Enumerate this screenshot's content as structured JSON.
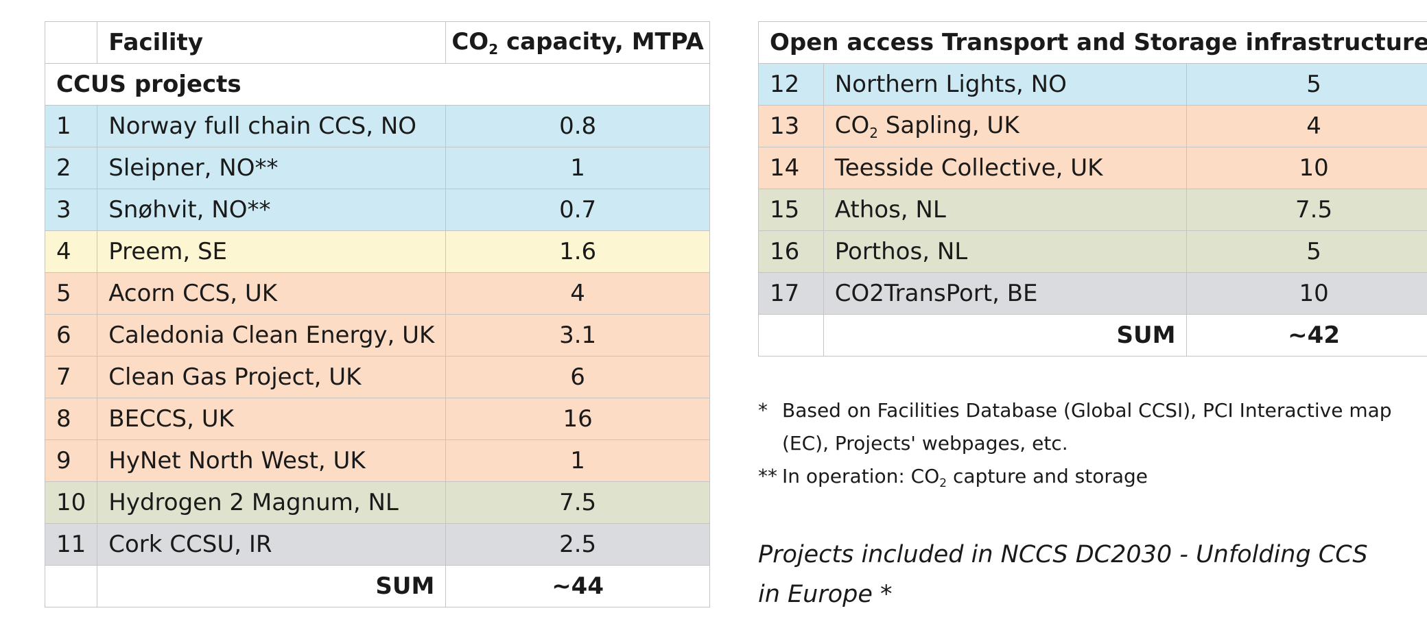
{
  "left_table": {
    "header": {
      "num": "",
      "facility": "Facility",
      "capacity_prefix": "CO",
      "capacity_sub": "2",
      "capacity_suffix": " capacity, MTPA"
    },
    "section_title": "CCUS projects",
    "rows": [
      {
        "num": "1",
        "facility": "Norway full chain CCS, NO",
        "capacity": "0.8",
        "category": "no"
      },
      {
        "num": "2",
        "facility": "Sleipner, NO**",
        "capacity": "1",
        "category": "no"
      },
      {
        "num": "3",
        "facility": "Snøhvit, NO**",
        "capacity": "0.7",
        "category": "no"
      },
      {
        "num": "4",
        "facility": "Preem, SE",
        "capacity": "1.6",
        "category": "se"
      },
      {
        "num": "5",
        "facility": "Acorn CCS, UK",
        "capacity": "4",
        "category": "uk"
      },
      {
        "num": "6",
        "facility": "Caledonia Clean Energy, UK",
        "capacity": "3.1",
        "category": "uk"
      },
      {
        "num": "7",
        "facility": "Clean Gas Project, UK",
        "capacity": "6",
        "category": "uk"
      },
      {
        "num": "8",
        "facility": "BECCS, UK",
        "capacity": "16",
        "category": "uk"
      },
      {
        "num": "9",
        "facility": "HyNet North West, UK",
        "capacity": "1",
        "category": "uk"
      },
      {
        "num": "10",
        "facility": "Hydrogen 2 Magnum, NL",
        "capacity": "7.5",
        "category": "nl"
      },
      {
        "num": "11",
        "facility": "Cork CCSU, IR",
        "capacity": "2.5",
        "category": "other"
      }
    ],
    "sum_label": "SUM",
    "sum_value": "~44"
  },
  "right_table": {
    "title": "Open access Transport and Storage infrastructure",
    "rows": [
      {
        "num": "12",
        "facility": "Northern Lights, NO",
        "capacity": "5",
        "category": "no"
      },
      {
        "num": "13",
        "facility_prefix": "CO",
        "facility_sub": "2",
        "facility_suffix": " Sapling, UK",
        "capacity": "4",
        "category": "uk"
      },
      {
        "num": "14",
        "facility": "Teesside Collective, UK",
        "capacity": "10",
        "category": "uk"
      },
      {
        "num": "15",
        "facility": "Athos, NL",
        "capacity": "7.5",
        "category": "nl"
      },
      {
        "num": "16",
        "facility": "Porthos, NL",
        "capacity": "5",
        "category": "nl"
      },
      {
        "num": "17",
        "facility": "CO2TransPort, BE",
        "capacity": "10",
        "category": "other"
      }
    ],
    "sum_label": "SUM",
    "sum_value": "~42"
  },
  "notes": [
    {
      "mark": "*",
      "text": "Based on Facilities Database (Global CCSI), PCI Interactive map (EC), Projects' webpages, etc."
    },
    {
      "mark": "**",
      "text_prefix": "In operation: CO",
      "text_sub": "2",
      "text_suffix": " capture and storage"
    }
  ],
  "footer_title": "Projects included in NCCS DC2030 - Unfolding CCS in Europe *"
}
